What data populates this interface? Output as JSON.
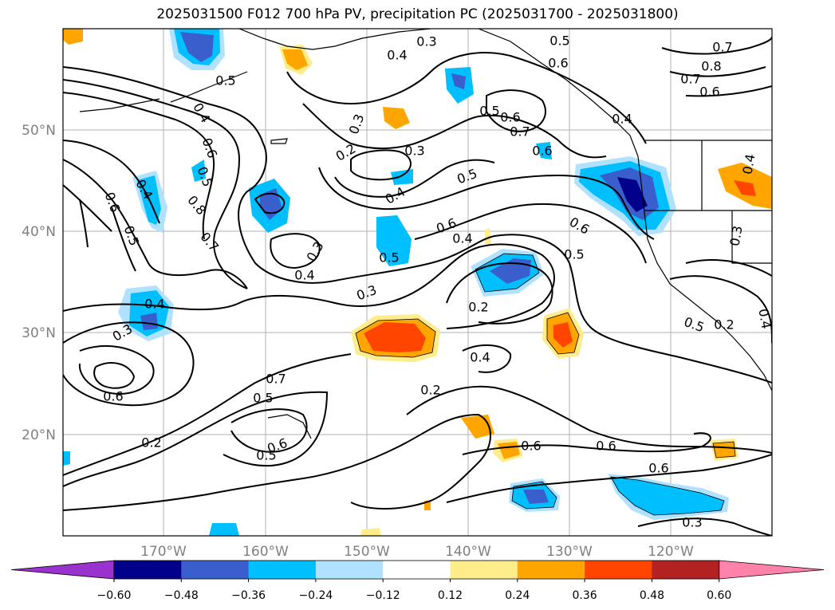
{
  "title": "2025031500 F012 700 hPa PV, precipitation PC (2025031700 - 2025031800)",
  "latitude_labels": [
    "50°N",
    "40°N",
    "30°N",
    "20°N"
  ],
  "longitude_labels": [
    "170°W",
    "160°W",
    "150°W",
    "140°W",
    "130°W",
    "120°W"
  ],
  "contour_labels": [
    "0.3",
    "0.4",
    "0.5",
    "0.6",
    "0.7",
    "0.8",
    "0.7",
    "0.6",
    "0.5",
    "0.4",
    "0.6",
    "0.5",
    "0.8",
    "0.7",
    "0.6",
    "0.5",
    "0.4",
    "0.3",
    "0.2",
    "0.4",
    "0.5",
    "0.6",
    "0.3",
    "0.5",
    "0.3",
    "0.4",
    "0.6",
    "0.7",
    "0.6",
    "0.4",
    "0.5",
    "0.2",
    "0.4",
    "0.6",
    "0.4",
    "0.4",
    "0.6",
    "0.3",
    "0.7",
    "0.6",
    "0.5",
    "0.6",
    "0.3",
    "0.2",
    "0.4",
    "0.3",
    "0.4",
    "0.5",
    "0.6",
    "0.2",
    "0.2",
    "0.5",
    "0.6",
    "0.5",
    "0.3"
  ],
  "colorbar": {
    "ticks": [
      "−0.60",
      "−0.48",
      "−0.36",
      "−0.24",
      "−0.12",
      "0.12",
      "0.24",
      "0.36",
      "0.48",
      "0.60"
    ],
    "colors": [
      "#9a32cd",
      "#00008b",
      "#3a5fcd",
      "#00bfff",
      "#b0e2ff",
      "#ffffff",
      "#ffec8b",
      "#ffa500",
      "#ff4500",
      "#b22222",
      "#ff82ab"
    ]
  }
}
